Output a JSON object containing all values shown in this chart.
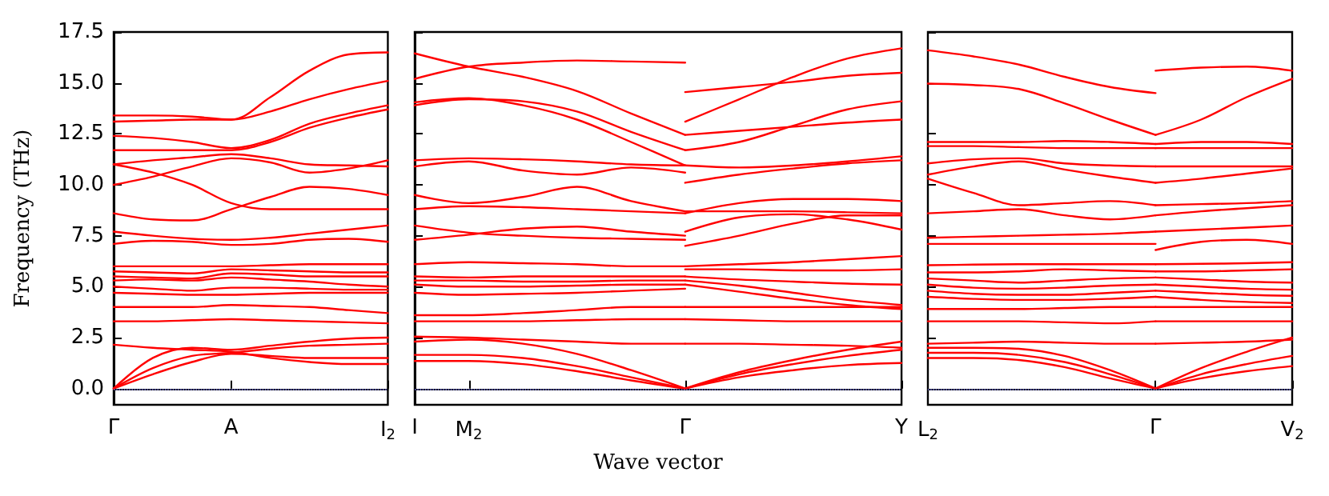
{
  "chart_data": [
    {
      "type": "line",
      "ylabel": "Frequency (THz)",
      "categories": [
        "Γ",
        null,
        null,
        "A",
        null,
        null,
        null,
        "I$_{2}$"
      ],
      "ylim": [
        -0.8,
        17.5
      ],
      "yticks": [
        {
          "value": 0,
          "label": "0.0"
        },
        2.5,
        {
          "value": 5,
          "label": "5.0"
        },
        7.5,
        {
          "value": 10,
          "label": "10.0"
        },
        12.5,
        {
          "value": 15,
          "label": "15.0"
        },
        17.5
      ],
      "ref_lines": [
        {
          "axis": "y",
          "value": 0,
          "color": "#6f6fe0",
          "line_style": "dotted"
        }
      ],
      "series": [
        {
          "color": "#ff0000",
          "values": [
            13.1,
            13.15,
            13.2,
            13.2,
            14.3,
            15.6,
            16.4,
            16.5
          ]
        },
        {
          "color": "#ff0000",
          "values": [
            13.4,
            13.4,
            13.35,
            13.2,
            13.6,
            14.2,
            14.7,
            15.1
          ]
        },
        {
          "color": "#ff0000",
          "values": [
            12.4,
            12.3,
            12.1,
            11.8,
            12.2,
            13.0,
            13.5,
            13.9
          ]
        },
        {
          "color": "#ff0000",
          "values": [
            11.7,
            11.7,
            11.7,
            11.7,
            12.1,
            12.8,
            13.3,
            13.7
          ]
        },
        {
          "color": "#ff0000",
          "values": [
            11.0,
            10.6,
            10.0,
            9.1,
            8.8,
            8.8,
            8.8,
            8.8
          ]
        },
        {
          "color": "#ff0000",
          "values": [
            10.0,
            10.4,
            10.9,
            11.3,
            11.1,
            10.6,
            10.8,
            11.2
          ]
        },
        {
          "color": "#ff0000",
          "values": [
            11.0,
            11.2,
            11.35,
            11.5,
            11.3,
            11.0,
            10.95,
            10.9
          ]
        },
        {
          "color": "#ff0000",
          "values": [
            8.6,
            8.3,
            8.25,
            8.8,
            9.4,
            9.9,
            9.8,
            9.5
          ]
        },
        {
          "color": "#ff0000",
          "values": [
            7.7,
            7.5,
            7.35,
            7.3,
            7.4,
            7.6,
            7.8,
            8.0
          ]
        },
        {
          "color": "#ff0000",
          "values": [
            7.1,
            7.25,
            7.2,
            7.05,
            7.1,
            7.3,
            7.35,
            7.2
          ]
        },
        {
          "color": "#ff0000",
          "values": [
            6.0,
            6.0,
            6.0,
            6.0,
            6.05,
            6.1,
            6.1,
            6.1
          ]
        },
        {
          "color": "#ff0000",
          "values": [
            5.75,
            5.7,
            5.65,
            5.85,
            5.8,
            5.75,
            5.7,
            5.7
          ]
        },
        {
          "color": "#ff0000",
          "values": [
            5.5,
            5.45,
            5.4,
            5.65,
            5.6,
            5.5,
            5.5,
            5.5
          ]
        },
        {
          "color": "#ff0000",
          "values": [
            5.3,
            5.35,
            5.3,
            5.45,
            5.35,
            5.25,
            5.1,
            5.0
          ]
        },
        {
          "color": "#ff0000",
          "values": [
            5.0,
            4.9,
            4.8,
            4.95,
            4.95,
            4.9,
            4.85,
            4.85
          ]
        },
        {
          "color": "#ff0000",
          "values": [
            4.7,
            4.65,
            4.6,
            4.6,
            4.65,
            4.7,
            4.7,
            4.7
          ]
        },
        {
          "color": "#ff0000",
          "values": [
            4.0,
            4.0,
            4.0,
            4.1,
            4.05,
            4.0,
            3.85,
            3.7
          ]
        },
        {
          "color": "#ff0000",
          "values": [
            3.3,
            3.3,
            3.35,
            3.4,
            3.35,
            3.3,
            3.25,
            3.2
          ]
        },
        {
          "color": "#ff0000",
          "values": [
            2.15,
            2.0,
            1.9,
            1.8,
            1.5,
            1.3,
            1.2,
            1.2
          ]
        },
        {
          "color": "#ff0000",
          "values": [
            0,
            1.5,
            2.0,
            1.9,
            2.1,
            2.3,
            2.45,
            2.5
          ]
        },
        {
          "color": "#ff0000",
          "values": [
            0,
            1.0,
            1.6,
            1.75,
            1.95,
            2.1,
            2.15,
            2.2
          ]
        },
        {
          "color": "#ff0000",
          "values": [
            0,
            0.7,
            1.3,
            1.7,
            1.6,
            1.5,
            1.5,
            1.5
          ]
        }
      ]
    },
    {
      "type": "line",
      "xlabel": "Wave vector",
      "tick_labels": "x",
      "categories": [
        "I",
        "M$_{2}$",
        null,
        null,
        null,
        "Γ",
        null,
        null,
        null,
        "Y"
      ],
      "ylim": [
        -0.8,
        17.5
      ],
      "yticks": [
        0,
        2.5,
        5,
        7.5,
        10,
        12.5,
        15,
        17.5
      ],
      "ref_lines": [
        {
          "axis": "y",
          "value": 0,
          "color": "#6f6fe0",
          "line_style": "dotted"
        }
      ],
      "series": [
        {
          "color": "#ff0000",
          "values": [
            16.45,
            15.8,
            15.3,
            14.6,
            13.5,
            12.45,
            null,
            null,
            null,
            null
          ]
        },
        {
          "color": "#ff0000",
          "values": [
            15.2,
            15.8,
            16.0,
            16.1,
            16.05,
            16.0,
            null,
            null,
            null,
            null
          ]
        },
        {
          "color": "#ff0000",
          "values": [
            13.9,
            14.2,
            14.1,
            13.6,
            12.6,
            11.7,
            null,
            null,
            null,
            null
          ]
        },
        {
          "color": "#ff0000",
          "values": [
            14.05,
            14.25,
            13.9,
            13.2,
            12.1,
            10.95,
            null,
            null,
            null,
            null
          ]
        },
        {
          "color": "#ff0000",
          "values": [
            11.2,
            11.3,
            11.25,
            11.15,
            11.0,
            10.95,
            null,
            null,
            null,
            null
          ]
        },
        {
          "color": "#ff0000",
          "values": [
            10.9,
            11.15,
            10.7,
            10.5,
            10.85,
            10.6,
            null,
            null,
            null,
            null
          ]
        },
        {
          "color": "#ff0000",
          "values": [
            9.5,
            9.1,
            9.4,
            9.9,
            9.2,
            8.7,
            null,
            null,
            null,
            null
          ]
        },
        {
          "color": "#ff0000",
          "values": [
            8.8,
            8.95,
            8.9,
            8.8,
            8.7,
            8.6,
            null,
            null,
            null,
            null
          ]
        },
        {
          "color": "#ff0000",
          "values": [
            8.0,
            7.65,
            7.5,
            7.4,
            7.35,
            7.3,
            null,
            null,
            null,
            null
          ]
        },
        {
          "color": "#ff0000",
          "values": [
            7.3,
            7.55,
            7.85,
            7.95,
            7.7,
            7.5,
            null,
            null,
            null,
            null
          ]
        },
        {
          "color": "#ff0000",
          "values": [
            6.1,
            6.2,
            6.15,
            6.1,
            6.0,
            6.0,
            null,
            null,
            null,
            null
          ]
        },
        {
          "color": "#ff0000",
          "values": [
            5.5,
            5.45,
            5.5,
            5.5,
            5.5,
            5.5,
            null,
            null,
            null,
            null
          ]
        },
        {
          "color": "#ff0000",
          "values": [
            5.3,
            5.3,
            5.25,
            5.25,
            5.3,
            5.3,
            null,
            null,
            null,
            null
          ]
        },
        {
          "color": "#ff0000",
          "values": [
            5.1,
            5.0,
            5.0,
            5.05,
            5.1,
            5.1,
            null,
            null,
            null,
            null
          ]
        },
        {
          "color": "#ff0000",
          "values": [
            4.7,
            4.6,
            4.65,
            4.7,
            4.8,
            4.9,
            null,
            null,
            null,
            null
          ]
        },
        {
          "color": "#ff0000",
          "values": [
            3.6,
            3.6,
            3.7,
            3.85,
            4.0,
            4.0,
            null,
            null,
            null,
            null
          ]
        },
        {
          "color": "#ff0000",
          "values": [
            3.3,
            3.3,
            3.3,
            3.35,
            3.4,
            3.4,
            null,
            null,
            null,
            null
          ]
        },
        {
          "color": "#ff0000",
          "values": [
            2.55,
            2.5,
            2.4,
            2.3,
            2.2,
            2.2,
            null,
            null,
            null,
            null
          ]
        },
        {
          "color": "#ff0000",
          "values": [
            2.3,
            2.4,
            2.2,
            1.7,
            0.9,
            0,
            null,
            null,
            null,
            null
          ]
        },
        {
          "color": "#ff0000",
          "values": [
            1.65,
            1.65,
            1.5,
            1.1,
            0.55,
            0,
            null,
            null,
            null,
            null
          ]
        },
        {
          "color": "#ff0000",
          "values": [
            1.35,
            1.35,
            1.2,
            0.85,
            0.4,
            0,
            null,
            null,
            null,
            null
          ]
        },
        {
          "color": "#ff0000",
          "values": [
            null,
            null,
            null,
            null,
            null,
            14.55,
            14.8,
            15.05,
            15.35,
            15.5
          ]
        },
        {
          "color": "#ff0000",
          "values": [
            null,
            null,
            null,
            null,
            null,
            13.1,
            14.2,
            15.3,
            16.2,
            16.7
          ]
        },
        {
          "color": "#ff0000",
          "values": [
            null,
            null,
            null,
            null,
            null,
            12.45,
            12.65,
            12.85,
            13.05,
            13.2
          ]
        },
        {
          "color": "#ff0000",
          "values": [
            null,
            null,
            null,
            null,
            null,
            11.7,
            12.1,
            12.9,
            13.7,
            14.1
          ]
        },
        {
          "color": "#ff0000",
          "values": [
            null,
            null,
            null,
            null,
            null,
            10.95,
            10.85,
            10.95,
            11.15,
            11.4
          ]
        },
        {
          "color": "#ff0000",
          "values": [
            null,
            null,
            null,
            null,
            null,
            10.1,
            10.5,
            10.8,
            11.05,
            11.2
          ]
        },
        {
          "color": "#ff0000",
          "values": [
            null,
            null,
            null,
            null,
            null,
            8.6,
            9.1,
            9.3,
            9.3,
            9.2
          ]
        },
        {
          "color": "#ff0000",
          "values": [
            null,
            null,
            null,
            null,
            null,
            8.7,
            8.7,
            8.7,
            8.65,
            8.6
          ]
        },
        {
          "color": "#ff0000",
          "values": [
            null,
            null,
            null,
            null,
            null,
            7.7,
            8.4,
            8.55,
            8.3,
            7.8
          ]
        },
        {
          "color": "#ff0000",
          "values": [
            null,
            null,
            null,
            null,
            null,
            7.0,
            7.5,
            8.1,
            8.5,
            8.5
          ]
        },
        {
          "color": "#ff0000",
          "values": [
            null,
            null,
            null,
            null,
            null,
            6.0,
            6.1,
            6.2,
            6.35,
            6.5
          ]
        },
        {
          "color": "#ff0000",
          "values": [
            null,
            null,
            null,
            null,
            null,
            5.85,
            5.85,
            5.8,
            5.8,
            5.85
          ]
        },
        {
          "color": "#ff0000",
          "values": [
            null,
            null,
            null,
            null,
            null,
            5.5,
            5.35,
            5.25,
            5.15,
            5.1
          ]
        },
        {
          "color": "#ff0000",
          "values": [
            null,
            null,
            null,
            null,
            null,
            5.3,
            5.05,
            4.7,
            4.35,
            4.1
          ]
        },
        {
          "color": "#ff0000",
          "values": [
            null,
            null,
            null,
            null,
            null,
            5.1,
            4.75,
            4.4,
            4.1,
            3.9
          ]
        },
        {
          "color": "#ff0000",
          "values": [
            null,
            null,
            null,
            null,
            null,
            4.0,
            4.0,
            4.0,
            4.0,
            4.0
          ]
        },
        {
          "color": "#ff0000",
          "values": [
            null,
            null,
            null,
            null,
            null,
            3.4,
            3.35,
            3.3,
            3.3,
            3.3
          ]
        },
        {
          "color": "#ff0000",
          "values": [
            null,
            null,
            null,
            null,
            null,
            2.2,
            2.2,
            2.15,
            2.1,
            2.0
          ]
        },
        {
          "color": "#ff0000",
          "values": [
            null,
            null,
            null,
            null,
            null,
            0,
            0.8,
            1.4,
            1.9,
            2.3
          ]
        },
        {
          "color": "#ff0000",
          "values": [
            null,
            null,
            null,
            null,
            null,
            0,
            0.7,
            1.2,
            1.6,
            1.9
          ]
        },
        {
          "color": "#ff0000",
          "values": [
            null,
            null,
            null,
            null,
            null,
            0,
            0.55,
            0.9,
            1.15,
            1.25
          ]
        }
      ]
    },
    {
      "type": "line",
      "tick_labels": "x",
      "categories": [
        "L$_{2}$",
        null,
        null,
        null,
        null,
        "Γ",
        null,
        null,
        "V$_{2}$"
      ],
      "ylim": [
        -0.8,
        17.5
      ],
      "yticks": [
        0,
        2.5,
        5,
        7.5,
        10,
        12.5,
        15,
        17.5
      ],
      "ref_lines": [
        {
          "axis": "y",
          "value": 0,
          "color": "#6f6fe0",
          "line_style": "dotted"
        }
      ],
      "series": [
        {
          "color": "#ff0000",
          "values": [
            16.6,
            16.3,
            15.9,
            15.3,
            14.8,
            14.5,
            null,
            null,
            null
          ]
        },
        {
          "color": "#ff0000",
          "values": [
            14.97,
            14.9,
            14.7,
            14.0,
            13.2,
            12.45,
            null,
            null,
            null
          ]
        },
        {
          "color": "#ff0000",
          "values": [
            12.1,
            12.1,
            12.1,
            12.15,
            12.1,
            12.0,
            null,
            null,
            null
          ]
        },
        {
          "color": "#ff0000",
          "values": [
            11.9,
            11.9,
            11.85,
            11.8,
            11.8,
            11.8,
            null,
            null,
            null
          ]
        },
        {
          "color": "#ff0000",
          "values": [
            11.05,
            11.25,
            11.3,
            11.05,
            10.95,
            10.9,
            null,
            null,
            null
          ]
        },
        {
          "color": "#ff0000",
          "values": [
            10.5,
            10.9,
            11.15,
            10.75,
            10.4,
            10.1,
            null,
            null,
            null
          ]
        },
        {
          "color": "#ff0000",
          "values": [
            10.3,
            9.6,
            9.0,
            9.1,
            9.2,
            9.0,
            null,
            null,
            null
          ]
        },
        {
          "color": "#ff0000",
          "values": [
            8.6,
            8.7,
            8.8,
            8.5,
            8.3,
            8.5,
            null,
            null,
            null
          ]
        },
        {
          "color": "#ff0000",
          "values": [
            7.4,
            7.45,
            7.5,
            7.55,
            7.6,
            7.7,
            null,
            null,
            null
          ]
        },
        {
          "color": "#ff0000",
          "values": [
            7.1,
            7.1,
            7.1,
            7.1,
            7.1,
            7.1,
            null,
            null,
            null
          ]
        },
        {
          "color": "#ff0000",
          "values": [
            6.05,
            6.08,
            6.1,
            6.1,
            6.1,
            6.1,
            null,
            null,
            null
          ]
        },
        {
          "color": "#ff0000",
          "values": [
            5.7,
            5.7,
            5.75,
            5.85,
            5.8,
            5.75,
            null,
            null,
            null
          ]
        },
        {
          "color": "#ff0000",
          "values": [
            5.4,
            5.3,
            5.2,
            5.3,
            5.4,
            5.45,
            null,
            null,
            null
          ]
        },
        {
          "color": "#ff0000",
          "values": [
            5.1,
            4.95,
            4.9,
            4.95,
            5.05,
            5.1,
            null,
            null,
            null
          ]
        },
        {
          "color": "#ff0000",
          "values": [
            4.8,
            4.65,
            4.6,
            4.6,
            4.7,
            4.8,
            null,
            null,
            null
          ]
        },
        {
          "color": "#ff0000",
          "values": [
            4.5,
            4.4,
            4.35,
            4.35,
            4.4,
            4.5,
            null,
            null,
            null
          ]
        },
        {
          "color": "#ff0000",
          "values": [
            3.9,
            3.9,
            3.9,
            3.95,
            4.0,
            4.0,
            null,
            null,
            null
          ]
        },
        {
          "color": "#ff0000",
          "values": [
            3.3,
            3.3,
            3.3,
            3.25,
            3.2,
            3.3,
            null,
            null,
            null
          ]
        },
        {
          "color": "#ff0000",
          "values": [
            2.2,
            2.25,
            2.3,
            2.25,
            2.2,
            2.2,
            null,
            null,
            null
          ]
        },
        {
          "color": "#ff0000",
          "values": [
            2.0,
            2.0,
            1.95,
            1.6,
            0.9,
            0,
            null,
            null,
            null
          ]
        },
        {
          "color": "#ff0000",
          "values": [
            1.75,
            1.75,
            1.65,
            1.3,
            0.7,
            0,
            null,
            null,
            null
          ]
        },
        {
          "color": "#ff0000",
          "values": [
            1.5,
            1.5,
            1.4,
            1.05,
            0.5,
            0,
            null,
            null,
            null
          ]
        },
        {
          "color": "#ff0000",
          "values": [
            null,
            null,
            null,
            null,
            null,
            15.6,
            15.75,
            15.8,
            15.6
          ]
        },
        {
          "color": "#ff0000",
          "values": [
            null,
            null,
            null,
            null,
            null,
            12.45,
            13.2,
            14.3,
            15.2
          ]
        },
        {
          "color": "#ff0000",
          "values": [
            null,
            null,
            null,
            null,
            null,
            12.0,
            12.1,
            12.1,
            12.0
          ]
        },
        {
          "color": "#ff0000",
          "values": [
            null,
            null,
            null,
            null,
            null,
            11.8,
            11.8,
            11.8,
            11.8
          ]
        },
        {
          "color": "#ff0000",
          "values": [
            null,
            null,
            null,
            null,
            null,
            10.9,
            10.9,
            10.9,
            10.9
          ]
        },
        {
          "color": "#ff0000",
          "values": [
            null,
            null,
            null,
            null,
            null,
            10.1,
            10.3,
            10.55,
            10.8
          ]
        },
        {
          "color": "#ff0000",
          "values": [
            null,
            null,
            null,
            null,
            null,
            8.5,
            8.7,
            8.85,
            9.0
          ]
        },
        {
          "color": "#ff0000",
          "values": [
            null,
            null,
            null,
            null,
            null,
            9.0,
            9.05,
            9.1,
            9.2
          ]
        },
        {
          "color": "#ff0000",
          "values": [
            null,
            null,
            null,
            null,
            null,
            7.7,
            7.8,
            7.9,
            8.0
          ]
        },
        {
          "color": "#ff0000",
          "values": [
            null,
            null,
            null,
            null,
            null,
            6.8,
            7.2,
            7.3,
            7.1
          ]
        },
        {
          "color": "#ff0000",
          "values": [
            null,
            null,
            null,
            null,
            null,
            6.1,
            6.12,
            6.15,
            6.2
          ]
        },
        {
          "color": "#ff0000",
          "values": [
            null,
            null,
            null,
            null,
            null,
            5.75,
            5.75,
            5.8,
            5.85
          ]
        },
        {
          "color": "#ff0000",
          "values": [
            null,
            null,
            null,
            null,
            null,
            5.45,
            5.35,
            5.25,
            5.2
          ]
        },
        {
          "color": "#ff0000",
          "values": [
            null,
            null,
            null,
            null,
            null,
            5.1,
            5.0,
            4.9,
            4.85
          ]
        },
        {
          "color": "#ff0000",
          "values": [
            null,
            null,
            null,
            null,
            null,
            4.8,
            4.7,
            4.6,
            4.55
          ]
        },
        {
          "color": "#ff0000",
          "values": [
            null,
            null,
            null,
            null,
            null,
            4.5,
            4.35,
            4.25,
            4.2
          ]
        },
        {
          "color": "#ff0000",
          "values": [
            null,
            null,
            null,
            null,
            null,
            4.0,
            4.0,
            4.0,
            4.0
          ]
        },
        {
          "color": "#ff0000",
          "values": [
            null,
            null,
            null,
            null,
            null,
            3.3,
            3.3,
            3.3,
            3.3
          ]
        },
        {
          "color": "#ff0000",
          "values": [
            null,
            null,
            null,
            null,
            null,
            2.2,
            2.25,
            2.3,
            2.4
          ]
        },
        {
          "color": "#ff0000",
          "values": [
            null,
            null,
            null,
            null,
            null,
            0,
            1.0,
            1.8,
            2.5
          ]
        },
        {
          "color": "#ff0000",
          "values": [
            null,
            null,
            null,
            null,
            null,
            0,
            0.7,
            1.2,
            1.6
          ]
        },
        {
          "color": "#ff0000",
          "values": [
            null,
            null,
            null,
            null,
            null,
            0,
            0.5,
            0.85,
            1.1
          ]
        }
      ]
    }
  ]
}
